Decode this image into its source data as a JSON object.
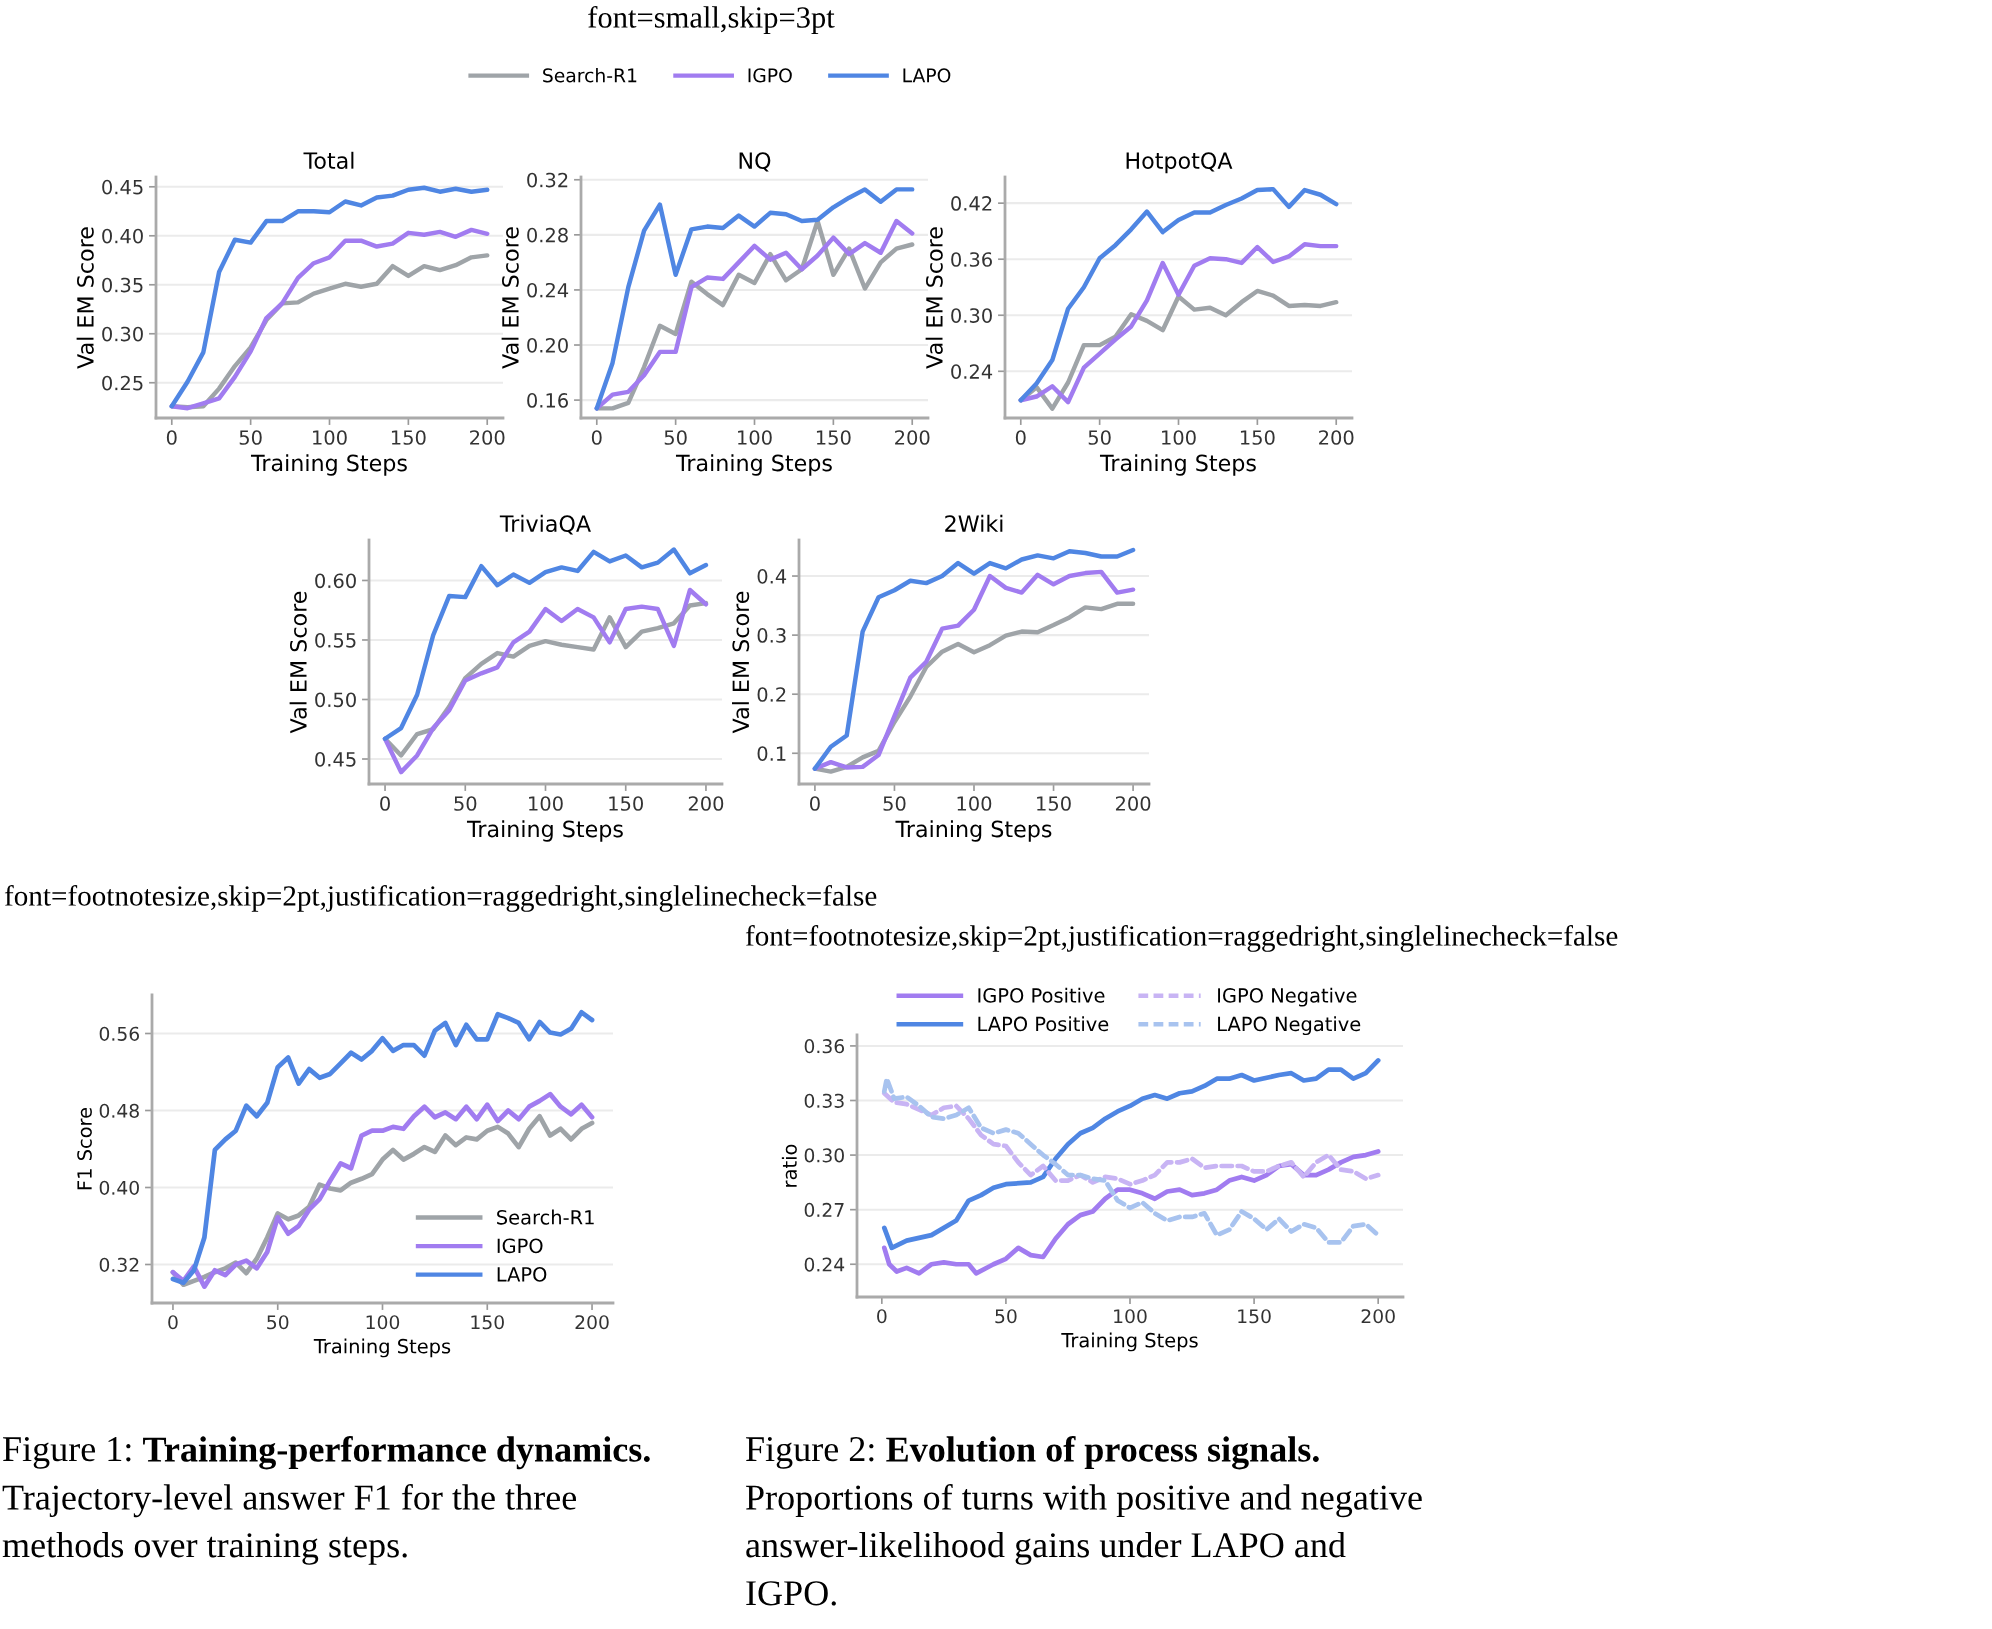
{
  "chart_data": [
    {
      "type": "line",
      "title": "Total",
      "xlabel": "Training Steps",
      "ylabel": "Val EM Score",
      "x": [
        0,
        10,
        20,
        30,
        40,
        50,
        60,
        70,
        80,
        90,
        100,
        110,
        120,
        130,
        140,
        150,
        160,
        170,
        180,
        190,
        200
      ],
      "xlim": [
        -10,
        210
      ],
      "xticks": [
        0,
        50,
        100,
        150,
        200
      ],
      "ylim": [
        0.214,
        0.46
      ],
      "yticks": [
        0.25,
        {
          "value": 0.3,
          "label": "0.30"
        },
        0.35,
        {
          "value": 0.4,
          "label": "0.40"
        },
        0.45
      ],
      "grid": "y",
      "legend": "top",
      "annotations": [
        "font=small,skip=3pt"
      ],
      "series": [
        {
          "name": "Search-R1",
          "color": "#9fa4a8",
          "values": [
            0.226,
            0.225,
            0.226,
            0.244,
            0.267,
            0.286,
            0.314,
            0.331,
            0.332,
            0.341,
            0.346,
            0.351,
            0.348,
            0.351,
            0.369,
            0.359,
            0.369,
            0.365,
            0.37,
            0.378,
            0.38
          ]
        },
        {
          "name": "IGPO",
          "color": "#a17cf0",
          "values": [
            0.226,
            0.224,
            0.229,
            0.234,
            0.256,
            0.282,
            0.316,
            0.331,
            0.357,
            0.372,
            0.378,
            0.395,
            0.395,
            0.389,
            0.392,
            0.403,
            0.401,
            0.404,
            0.399,
            0.406,
            0.402
          ]
        },
        {
          "name": "LAPO",
          "color": "#4f86e3",
          "values": [
            0.226,
            0.251,
            0.281,
            0.363,
            0.396,
            0.393,
            0.415,
            0.415,
            0.425,
            0.425,
            0.424,
            0.435,
            0.431,
            0.439,
            0.441,
            0.447,
            0.449,
            0.445,
            0.448,
            0.445,
            0.447
          ]
        }
      ]
    },
    {
      "type": "line",
      "title": "NQ",
      "xlabel": "Training Steps",
      "ylabel": "Val EM Score",
      "x": [
        0,
        10,
        20,
        30,
        40,
        50,
        60,
        70,
        80,
        90,
        100,
        110,
        120,
        130,
        140,
        150,
        160,
        170,
        180,
        190,
        200
      ],
      "xlim": [
        -10,
        210
      ],
      "xticks": [
        0,
        50,
        100,
        150,
        200
      ],
      "ylim": [
        0.147,
        0.322
      ],
      "yticks": [
        0.16,
        {
          "value": 0.2,
          "label": "0.20"
        },
        0.24,
        0.28,
        0.32
      ],
      "grid": "y",
      "series": [
        {
          "color": "#9fa4a8",
          "values": [
            0.154,
            0.154,
            0.158,
            0.184,
            0.214,
            0.208,
            0.246,
            0.237,
            0.229,
            0.251,
            0.245,
            0.266,
            0.247,
            0.255,
            0.29,
            0.251,
            0.27,
            0.241,
            0.26,
            0.27,
            0.273
          ]
        },
        {
          "color": "#a17cf0",
          "values": [
            0.154,
            0.164,
            0.166,
            0.178,
            0.195,
            0.195,
            0.242,
            0.249,
            0.248,
            0.26,
            0.272,
            0.262,
            0.267,
            0.255,
            0.265,
            0.278,
            0.266,
            0.274,
            0.267,
            0.29,
            0.281
          ]
        },
        {
          "color": "#4f86e3",
          "values": [
            0.154,
            0.187,
            0.242,
            0.283,
            0.302,
            0.251,
            0.284,
            0.286,
            0.285,
            0.294,
            0.286,
            0.296,
            0.295,
            0.29,
            0.291,
            0.3,
            0.307,
            0.313,
            0.304,
            0.313,
            0.313
          ]
        }
      ]
    },
    {
      "type": "line",
      "title": "HotpotQA",
      "xlabel": "Training Steps",
      "ylabel": "Val EM Score",
      "x": [
        0,
        10,
        20,
        30,
        40,
        50,
        60,
        70,
        80,
        90,
        100,
        110,
        120,
        130,
        140,
        150,
        160,
        170,
        180,
        190,
        200
      ],
      "xlim": [
        -10,
        210
      ],
      "xticks": [
        0,
        50,
        100,
        150,
        200
      ],
      "ylim": [
        0.19,
        0.448
      ],
      "yticks": [
        0.24,
        {
          "value": 0.3,
          "label": "0.30"
        },
        0.36,
        0.42
      ],
      "grid": "y",
      "series": [
        {
          "color": "#9fa4a8",
          "values": [
            0.209,
            0.223,
            0.2,
            0.228,
            0.268,
            0.268,
            0.277,
            0.301,
            0.294,
            0.284,
            0.32,
            0.306,
            0.308,
            0.3,
            0.314,
            0.326,
            0.321,
            0.31,
            0.311,
            0.31,
            0.314
          ]
        },
        {
          "color": "#a17cf0",
          "values": [
            0.209,
            0.213,
            0.224,
            0.207,
            0.244,
            0.259,
            0.274,
            0.288,
            0.316,
            0.356,
            0.322,
            0.353,
            0.361,
            0.36,
            0.356,
            0.373,
            0.357,
            0.363,
            0.376,
            0.374,
            0.374
          ]
        },
        {
          "color": "#4f86e3",
          "values": [
            0.209,
            0.227,
            0.252,
            0.307,
            0.33,
            0.361,
            0.375,
            0.392,
            0.411,
            0.389,
            0.402,
            0.41,
            0.41,
            0.418,
            0.425,
            0.434,
            0.435,
            0.416,
            0.434,
            0.429,
            0.419
          ]
        }
      ]
    },
    {
      "type": "line",
      "title": "TriviaQA",
      "xlabel": "Training Steps",
      "ylabel": "Val EM Score",
      "x": [
        0,
        10,
        20,
        30,
        40,
        50,
        60,
        70,
        80,
        90,
        100,
        110,
        120,
        130,
        140,
        150,
        160,
        170,
        180,
        190,
        200
      ],
      "xlim": [
        -10,
        210
      ],
      "xticks": [
        0,
        50,
        100,
        150,
        200
      ],
      "ylim": [
        0.429,
        0.634
      ],
      "yticks": [
        0.45,
        {
          "value": 0.5,
          "label": "0.50"
        },
        0.55,
        {
          "value": 0.6,
          "label": "0.60"
        }
      ],
      "grid": "y",
      "series": [
        {
          "color": "#9fa4a8",
          "values": [
            0.467,
            0.453,
            0.471,
            0.475,
            0.494,
            0.518,
            0.53,
            0.539,
            0.536,
            0.545,
            0.549,
            0.546,
            0.544,
            0.542,
            0.569,
            0.544,
            0.557,
            0.56,
            0.564,
            0.579,
            0.581
          ]
        },
        {
          "color": "#a17cf0",
          "values": [
            0.467,
            0.439,
            0.453,
            0.476,
            0.491,
            0.516,
            0.522,
            0.527,
            0.548,
            0.557,
            0.576,
            0.566,
            0.576,
            0.569,
            0.548,
            0.576,
            0.578,
            0.576,
            0.545,
            0.592,
            0.58
          ]
        },
        {
          "color": "#4f86e3",
          "values": [
            0.467,
            0.476,
            0.504,
            0.554,
            0.587,
            0.586,
            0.612,
            0.596,
            0.605,
            0.598,
            0.607,
            0.611,
            0.608,
            0.624,
            0.616,
            0.621,
            0.611,
            0.615,
            0.626,
            0.606,
            0.613
          ]
        }
      ]
    },
    {
      "type": "line",
      "title": "2Wiki",
      "xlabel": "Training Steps",
      "ylabel": "Val EM Score",
      "x": [
        0,
        10,
        20,
        30,
        40,
        50,
        60,
        70,
        80,
        90,
        100,
        110,
        120,
        130,
        140,
        150,
        160,
        170,
        180,
        190,
        200
      ],
      "xlim": [
        -10,
        210
      ],
      "xticks": [
        0,
        50,
        100,
        150,
        200
      ],
      "ylim": [
        0.048,
        0.461
      ],
      "yticks": [
        0.1,
        0.2,
        0.3,
        0.4
      ],
      "grid": "y",
      "series": [
        {
          "color": "#9fa4a8",
          "values": [
            0.074,
            0.069,
            0.077,
            0.093,
            0.104,
            0.153,
            0.196,
            0.246,
            0.272,
            0.285,
            0.271,
            0.283,
            0.299,
            0.306,
            0.305,
            0.317,
            0.33,
            0.347,
            0.344,
            0.353,
            0.353
          ]
        },
        {
          "color": "#a17cf0",
          "values": [
            0.074,
            0.085,
            0.076,
            0.077,
            0.097,
            0.163,
            0.228,
            0.255,
            0.311,
            0.316,
            0.343,
            0.4,
            0.38,
            0.372,
            0.402,
            0.386,
            0.4,
            0.405,
            0.407,
            0.372,
            0.377
          ]
        },
        {
          "color": "#4f86e3",
          "values": [
            0.074,
            0.111,
            0.13,
            0.306,
            0.364,
            0.376,
            0.392,
            0.388,
            0.4,
            0.422,
            0.404,
            0.422,
            0.413,
            0.428,
            0.435,
            0.43,
            0.442,
            0.439,
            0.433,
            0.433,
            0.444
          ]
        }
      ]
    },
    {
      "type": "line",
      "xlabel": "Training Steps",
      "ylabel": "F1 Score",
      "x": [
        0,
        5,
        10,
        15,
        20,
        25,
        30,
        35,
        40,
        45,
        50,
        55,
        60,
        65,
        70,
        75,
        80,
        85,
        90,
        95,
        100,
        105,
        110,
        115,
        120,
        125,
        130,
        135,
        140,
        145,
        150,
        155,
        160,
        165,
        170,
        175,
        180,
        185,
        190,
        195,
        200
      ],
      "xlim": [
        -10,
        210
      ],
      "xticks": [
        0,
        50,
        100,
        150,
        200
      ],
      "ylim": [
        0.28,
        0.6
      ],
      "yticks": [
        0.32,
        {
          "value": 0.4,
          "label": "0.40"
        },
        0.48,
        0.56
      ],
      "grid": "y",
      "legend": "bottom right",
      "annotations": [
        "font=footnotesize,skip=2pt,justification=raggedright,singlelinecheck=false",
        "Figure 1:",
        "Training-performance dynamics.",
        "Trajectory-level answer F1 for the three methods over training steps."
      ],
      "series": [
        {
          "name": "Search-R1",
          "color": "#9fa4a8",
          "values": [
            0.312,
            0.299,
            0.303,
            0.307,
            0.312,
            0.316,
            0.322,
            0.311,
            0.326,
            0.348,
            0.373,
            0.367,
            0.371,
            0.38,
            0.403,
            0.399,
            0.397,
            0.405,
            0.409,
            0.414,
            0.429,
            0.439,
            0.429,
            0.435,
            0.442,
            0.437,
            0.454,
            0.444,
            0.452,
            0.45,
            0.459,
            0.463,
            0.456,
            0.442,
            0.461,
            0.474,
            0.454,
            0.461,
            0.45,
            0.461,
            0.467
          ]
        },
        {
          "name": "IGPO",
          "color": "#a17cf0",
          "values": [
            0.312,
            0.303,
            0.318,
            0.297,
            0.314,
            0.309,
            0.32,
            0.324,
            0.316,
            0.333,
            0.369,
            0.352,
            0.36,
            0.377,
            0.388,
            0.407,
            0.425,
            0.42,
            0.454,
            0.459,
            0.459,
            0.463,
            0.461,
            0.474,
            0.484,
            0.473,
            0.478,
            0.471,
            0.484,
            0.471,
            0.486,
            0.469,
            0.48,
            0.471,
            0.484,
            0.49,
            0.497,
            0.484,
            0.476,
            0.486,
            0.473
          ]
        },
        {
          "name": "LAPO",
          "color": "#4f86e3",
          "values": [
            0.305,
            0.301,
            0.314,
            0.348,
            0.439,
            0.45,
            0.459,
            0.485,
            0.474,
            0.488,
            0.525,
            0.535,
            0.508,
            0.523,
            0.514,
            0.518,
            0.529,
            0.54,
            0.533,
            0.542,
            0.555,
            0.542,
            0.548,
            0.548,
            0.537,
            0.563,
            0.571,
            0.548,
            0.569,
            0.554,
            0.554,
            0.58,
            0.576,
            0.571,
            0.554,
            0.572,
            0.561,
            0.559,
            0.565,
            0.582,
            0.574
          ]
        }
      ]
    },
    {
      "type": "line",
      "xlabel": "Training Steps",
      "ylabel": "ratio",
      "xlim": [
        -10,
        210
      ],
      "xticks": [
        0,
        50,
        100,
        150,
        200
      ],
      "ylim": [
        0.222,
        0.366
      ],
      "yticks": [
        0.24,
        0.27,
        {
          "value": 0.3,
          "label": "0.30"
        },
        0.33,
        0.36
      ],
      "grid": "y",
      "legend": "top",
      "annotations": [
        "font=footnotesize,skip=2pt,justification=raggedright,singlelinecheck=false",
        "Figure 2:",
        "Evolution of process signals.",
        "Proportions of turns with positive and negative answer-likelihood gains under LAPO and IGPO."
      ],
      "series": [
        {
          "name": "IGPO Positive",
          "color": "#a17cf0",
          "line_style": "solid",
          "x": [
            1,
            3,
            6,
            10,
            15,
            20,
            25,
            30,
            35,
            38,
            45,
            50,
            55,
            60,
            65,
            70,
            75,
            80,
            85,
            90,
            95,
            100,
            105,
            110,
            115,
            120,
            125,
            130,
            135,
            140,
            145,
            150,
            155,
            160,
            165,
            170,
            175,
            180,
            185,
            190,
            195,
            200
          ],
          "values": [
            0.249,
            0.24,
            0.236,
            0.238,
            0.235,
            0.24,
            0.241,
            0.24,
            0.24,
            0.235,
            0.24,
            0.243,
            0.249,
            0.245,
            0.244,
            0.254,
            0.262,
            0.267,
            0.269,
            0.276,
            0.281,
            0.281,
            0.279,
            0.276,
            0.28,
            0.281,
            0.278,
            0.279,
            0.281,
            0.286,
            0.288,
            0.286,
            0.289,
            0.294,
            0.295,
            0.289,
            0.289,
            0.292,
            0.296,
            0.299,
            0.3,
            0.302
          ]
        },
        {
          "name": "LAPO Positive",
          "color": "#4f86e3",
          "line_style": "solid",
          "x": [
            1,
            4,
            10,
            20,
            30,
            35,
            40,
            45,
            50,
            60,
            65,
            70,
            75,
            80,
            85,
            90,
            95,
            100,
            105,
            110,
            115,
            120,
            125,
            130,
            135,
            140,
            145,
            150,
            160,
            165,
            170,
            175,
            180,
            185,
            190,
            195,
            200
          ],
          "values": [
            0.26,
            0.249,
            0.253,
            0.256,
            0.264,
            0.275,
            0.278,
            0.282,
            0.284,
            0.285,
            0.288,
            0.298,
            0.306,
            0.312,
            0.315,
            0.32,
            0.324,
            0.327,
            0.331,
            0.333,
            0.331,
            0.334,
            0.335,
            0.338,
            0.342,
            0.342,
            0.344,
            0.341,
            0.344,
            0.345,
            0.341,
            0.342,
            0.347,
            0.347,
            0.342,
            0.345,
            0.352
          ]
        },
        {
          "name": "IGPO Negative",
          "color": "#c8b4f4",
          "line_style": "dashed",
          "x": [
            1,
            5,
            10,
            15,
            20,
            25,
            30,
            35,
            40,
            45,
            50,
            55,
            60,
            65,
            70,
            75,
            80,
            85,
            90,
            95,
            100,
            105,
            110,
            115,
            120,
            125,
            130,
            135,
            140,
            145,
            150,
            155,
            160,
            165,
            170,
            175,
            180,
            185,
            190,
            195,
            200
          ],
          "values": [
            0.334,
            0.329,
            0.328,
            0.325,
            0.322,
            0.326,
            0.327,
            0.32,
            0.311,
            0.306,
            0.305,
            0.296,
            0.289,
            0.294,
            0.286,
            0.286,
            0.289,
            0.285,
            0.288,
            0.287,
            0.284,
            0.286,
            0.289,
            0.296,
            0.296,
            0.298,
            0.293,
            0.294,
            0.294,
            0.294,
            0.291,
            0.291,
            0.294,
            0.296,
            0.288,
            0.296,
            0.3,
            0.292,
            0.291,
            0.287,
            0.289
          ]
        },
        {
          "name": "LAPO Negative",
          "color": "#a8c3ef",
          "line_style": "dashed",
          "x": [
            1,
            2,
            5,
            10,
            15,
            20,
            25,
            30,
            35,
            40,
            45,
            50,
            55,
            60,
            65,
            70,
            75,
            80,
            85,
            90,
            95,
            100,
            105,
            110,
            115,
            120,
            125,
            130,
            135,
            140,
            145,
            150,
            155,
            160,
            165,
            170,
            175,
            180,
            185,
            190,
            195,
            200
          ],
          "values": [
            0.335,
            0.342,
            0.331,
            0.332,
            0.327,
            0.321,
            0.32,
            0.322,
            0.326,
            0.315,
            0.312,
            0.314,
            0.312,
            0.306,
            0.3,
            0.295,
            0.289,
            0.289,
            0.287,
            0.286,
            0.275,
            0.271,
            0.274,
            0.268,
            0.264,
            0.266,
            0.266,
            0.268,
            0.256,
            0.259,
            0.269,
            0.265,
            0.259,
            0.265,
            0.258,
            0.262,
            0.26,
            0.252,
            0.252,
            0.261,
            0.262,
            0.256
          ]
        }
      ]
    }
  ]
}
